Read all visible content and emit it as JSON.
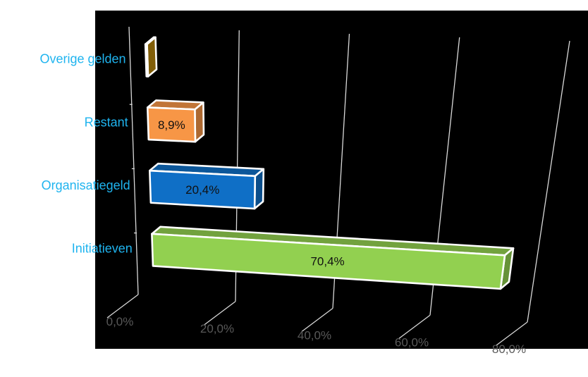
{
  "chart_data": {
    "type": "bar",
    "orientation": "horizontal",
    "style": "3d",
    "categories": [
      "Overige gelden",
      "Restant",
      "Organisatiegeld",
      "Initiatieven"
    ],
    "values": [
      0.3,
      8.9,
      20.4,
      70.4
    ],
    "data_labels": [
      "",
      "8,9%",
      "20,4%",
      "70,4%"
    ],
    "colors": [
      "#b8860b",
      "#f79646",
      "#0f6fc6",
      "#92d050"
    ],
    "xlim": [
      0,
      80
    ],
    "x_ticks": [
      0,
      20,
      40,
      60,
      80
    ],
    "x_tick_labels": [
      "0,0%",
      "20,0%",
      "40,0%",
      "60,0%",
      "80,0%"
    ],
    "title": "",
    "xlabel": "",
    "ylabel": "",
    "grid": true,
    "legend": "none",
    "label_color": "#1fb4ef",
    "tick_label_color": "#595959",
    "background": "#000000"
  }
}
